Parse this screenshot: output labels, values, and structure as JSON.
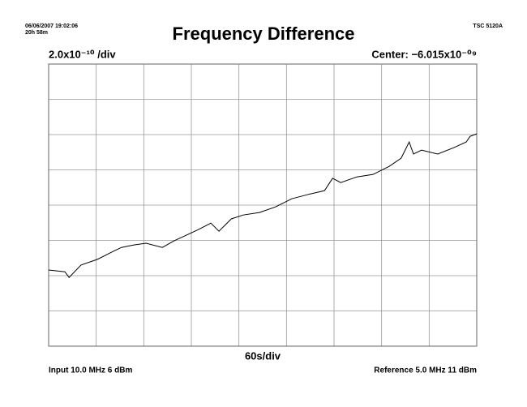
{
  "chart_data": {
    "type": "line",
    "title": "Frequency Difference",
    "timestamp": "06/06/2007 19:02:06",
    "duration": "20h 58m",
    "instrument": "TSC 5120A",
    "y_scale_label": "2.0x10⁻¹⁰ /div",
    "center_label": "Center: −6.015x10⁻⁰⁹",
    "x_scale_label": "60s/div",
    "input_label": "Input 10.0 MHz 6 dBm",
    "reference_label": "Reference 5.0 MHz 11 dBm",
    "xlim": [
      0,
      9
    ],
    "ylim": [
      -4,
      4
    ],
    "grid": {
      "x_divisions": 9,
      "y_divisions": 8
    },
    "series": [
      {
        "color": "#000000",
        "x": [
          0,
          0.34,
          0.43,
          0.68,
          1.02,
          1.36,
          1.53,
          1.79,
          2.05,
          2.39,
          2.64,
          2.9,
          3.15,
          3.41,
          3.58,
          3.84,
          4.09,
          4.43,
          4.77,
          5.11,
          5.45,
          5.8,
          5.97,
          6.14,
          6.48,
          6.82,
          7.16,
          7.41,
          7.58,
          7.67,
          7.84,
          8.18,
          8.52,
          8.78,
          8.86,
          9.0
        ],
        "values": [
          -1.84,
          -1.89,
          -2.05,
          -1.7,
          -1.54,
          -1.31,
          -1.2,
          -1.13,
          -1.08,
          -1.2,
          -1.01,
          -0.85,
          -0.69,
          -0.51,
          -0.74,
          -0.39,
          -0.28,
          -0.21,
          -0.05,
          0.18,
          0.3,
          0.41,
          0.76,
          0.64,
          0.8,
          0.87,
          1.1,
          1.33,
          1.79,
          1.45,
          1.56,
          1.45,
          1.63,
          1.79,
          1.95,
          2.02
        ]
      }
    ]
  }
}
